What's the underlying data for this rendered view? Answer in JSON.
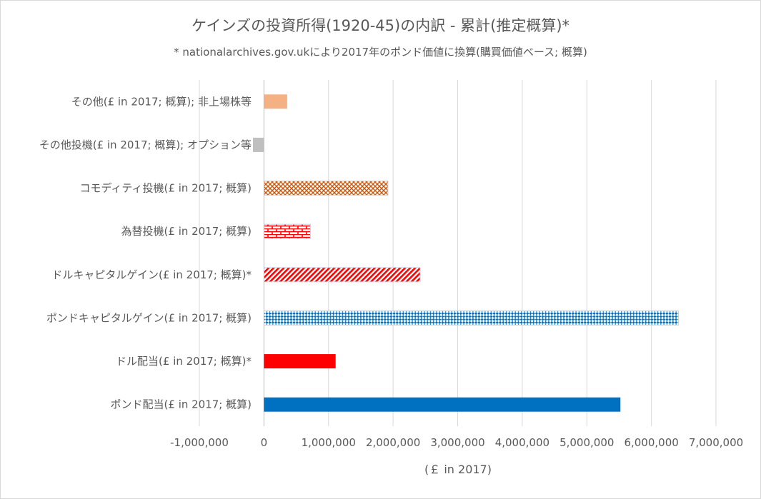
{
  "chart_data": {
    "type": "bar",
    "orientation": "horizontal",
    "title": "ケインズの投資所得(1920-45)の内訳 - 累計(推定概算)*",
    "subtitle": "* nationalarchives.gov.ukにより2017年のポンド価値に換算(購買価値ベース; 概算)",
    "xlabel": "(￡ in 2017)",
    "xlim": [
      -1000000,
      7000000
    ],
    "x_ticks": [
      -1000000,
      0,
      1000000,
      2000000,
      3000000,
      4000000,
      5000000,
      6000000,
      7000000
    ],
    "x_tick_labels": [
      "-1,000,000",
      "0",
      "1,000,000",
      "2,000,000",
      "3,000,000",
      "4,000,000",
      "5,000,000",
      "6,000,000",
      "7,000,000"
    ],
    "grid": "vertical",
    "categories": [
      "その他(£ in 2017; 概算); 非上場株等",
      "その他投機(£ in 2017; 概算); オプション等",
      "コモディティ投機(£ in 2017; 概算)",
      "為替投機(£ in 2017; 概算)",
      "ドルキャピタルゲイン(£ in 2017; 概算)*",
      "ポンドキャピタルゲイン(£ in 2017; 概算)",
      "ドル配当(£ in 2017; 概算)*",
      "ポンド配当(£ in 2017; 概算)"
    ],
    "values": [
      360000,
      -170000,
      1920000,
      720000,
      2420000,
      6420000,
      1110000,
      5520000
    ],
    "bar_styles": [
      {
        "fill": "#f4b183",
        "pattern": "solid"
      },
      {
        "fill": "#bfbfbf",
        "pattern": "solid"
      },
      {
        "fill": "#c55a11",
        "pattern": "crosshatch"
      },
      {
        "fill": "#ff0000",
        "pattern": "brick"
      },
      {
        "fill": "#ff0000",
        "pattern": "diagonal"
      },
      {
        "fill": "#0070c0",
        "pattern": "checker"
      },
      {
        "fill": "#ff0000",
        "pattern": "solid"
      },
      {
        "fill": "#0070c0",
        "pattern": "solid"
      }
    ]
  }
}
